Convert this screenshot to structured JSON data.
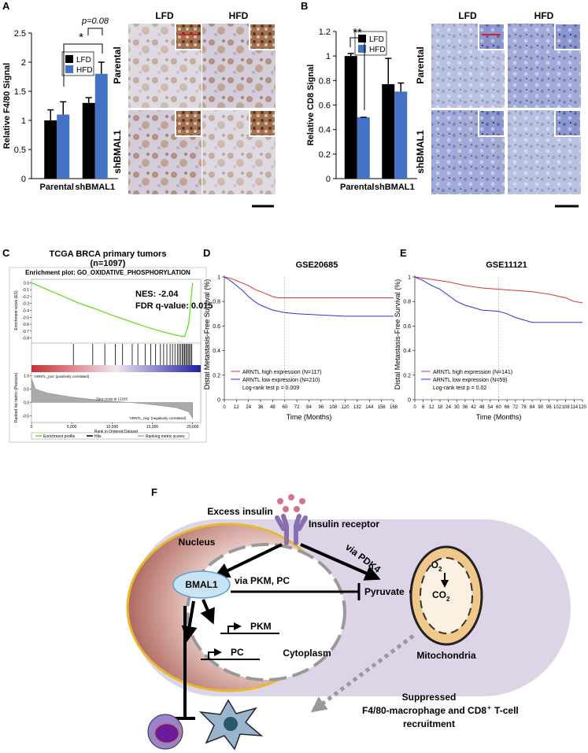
{
  "panel_labels": [
    "A",
    "B",
    "C",
    "D",
    "E",
    "F"
  ],
  "chart_data": [
    {
      "type": "bar",
      "ylabel": "Relative F4/80 Signal",
      "categories": [
        "Parental",
        "shBMAL1"
      ],
      "series": [
        {
          "name": "LFD",
          "color": "#000000",
          "values": [
            1.0,
            1.3
          ],
          "errors": [
            0.18,
            0.09
          ]
        },
        {
          "name": "HFD",
          "color": "#4472c4",
          "values": [
            1.1,
            1.8
          ],
          "errors": [
            0.22,
            0.2
          ]
        }
      ],
      "ylim": [
        0,
        2.5
      ],
      "yticks": [
        0,
        0.5,
        1,
        1.5,
        2,
        2.5
      ],
      "annotations": [
        "*",
        "p=0.08"
      ],
      "images": {
        "columns": [
          "LFD",
          "HFD"
        ],
        "rows": [
          "Parental",
          "shBMAL1"
        ]
      }
    },
    {
      "type": "bar",
      "ylabel": "Relative CD8 Signal",
      "categories": [
        "Parental",
        "shBMAL1"
      ],
      "series": [
        {
          "name": "LFD",
          "color": "#000000",
          "values": [
            1.0,
            0.77
          ],
          "errors": [
            0.02,
            0.21
          ]
        },
        {
          "name": "HFD",
          "color": "#4472c4",
          "values": [
            0.5,
            0.71
          ],
          "errors": [
            0,
            0.07
          ]
        }
      ],
      "ylim": [
        0,
        1.2
      ],
      "yticks": [
        0,
        0.2,
        0.4,
        0.6,
        0.8,
        1,
        1.2
      ],
      "annotations": [
        "**"
      ],
      "images": {
        "columns": [
          "LFD",
          "HFD"
        ],
        "rows": [
          "Parental",
          "shBMAL1"
        ]
      }
    },
    {
      "type": "gsea",
      "title": "TCGA BRCA primary tumors",
      "subtitle": "(n=1097)",
      "plot_title": "Enrichment plot: GO_OXIDATIVE_PHOSPHORYLATION",
      "stats": [
        "NES: -2.04",
        "FDR q-value: 0.015"
      ],
      "ylabel": "Enrichment score (ES)",
      "color": "#66dd22",
      "x": [
        0,
        2000,
        4000,
        6000,
        8000,
        10000,
        12000,
        14000,
        16000,
        18000,
        19000,
        19500,
        20000
      ],
      "values": [
        0,
        -0.1,
        -0.2,
        -0.3,
        -0.38,
        -0.47,
        -0.55,
        -0.63,
        -0.7,
        -0.76,
        -0.78,
        -0.6,
        0
      ],
      "ylim": [
        -0.85,
        0.05
      ],
      "yticks": [
        {
          "value": 0,
          "label": "0.0"
        },
        -0.1,
        -0.2,
        -0.3,
        -0.4,
        -0.5,
        -0.6,
        -0.7,
        -0.8
      ],
      "hits": [
        5200,
        7600,
        9100,
        10400,
        11300,
        12500,
        13200,
        14100,
        14800,
        15400,
        16000,
        16400,
        16800,
        17200,
        17500,
        17800,
        18100,
        18300,
        18500,
        18700,
        18850,
        19000,
        19150,
        19300,
        19450,
        19600,
        19750,
        19900
      ],
      "metric": {
        "ylabel": "Ranked list metric (Pearson)",
        "x": [
          0,
          500,
          2000,
          5000,
          8000,
          10000,
          12183,
          14000,
          16000,
          18000,
          19500,
          20000
        ],
        "values": [
          0.9,
          0.5,
          0.35,
          0.2,
          0.1,
          0.05,
          0,
          -0.05,
          -0.12,
          -0.2,
          -0.35,
          -0.6
        ],
        "ylim": [
          -0.75,
          1.1
        ],
        "yticks": [
          {
            "value": 1,
            "label": "1.0"
          },
          {
            "value": 0.5,
            "label": "0.5"
          },
          {
            "value": 0,
            "label": "0.0"
          },
          -0.5
        ],
        "pos_label": "'ARNTL_pos' (positively correlated)",
        "neg_label": "'ARNTL_neg' (negatively correlated)",
        "zero_cross": "Zero cross at 12183"
      },
      "xlabel": "Rank in Ordered Dataset",
      "xlim": [
        0,
        21000
      ],
      "xticks": [
        0,
        {
          "value": 5000,
          "label": "5,000"
        },
        {
          "value": 10000,
          "label": "10,000"
        },
        {
          "value": 15000,
          "label": "15,000"
        },
        {
          "value": 20000,
          "label": "20,000"
        }
      ],
      "legend": [
        "Enrichment profile",
        "Hits",
        "Ranking metric scores"
      ]
    },
    {
      "type": "km",
      "title": "GSE20685",
      "ylabel": "Distal Metastasis-Free Survival (%)",
      "xlabel": "Time (Months)",
      "xlim": [
        0,
        168
      ],
      "xticks": [
        0,
        12,
        24,
        36,
        48,
        60,
        72,
        84,
        96,
        108,
        120,
        132,
        144,
        156,
        168
      ],
      "ylim": [
        0,
        1
      ],
      "yticks": [
        0,
        0.2,
        0.4,
        0.6,
        0.8,
        1
      ],
      "ref_line": 60,
      "series": [
        {
          "name": "ARNTL high expression (N=117)",
          "color": "#e03030",
          "x": [
            0,
            6,
            12,
            18,
            24,
            30,
            36,
            42,
            48,
            54,
            60,
            168
          ],
          "values": [
            1,
            0.99,
            0.97,
            0.95,
            0.93,
            0.9,
            0.88,
            0.86,
            0.84,
            0.83,
            0.83,
            0.83
          ]
        },
        {
          "name": "ARNTL low expression (N=210)",
          "color": "#3030e0",
          "x": [
            0,
            6,
            12,
            18,
            24,
            30,
            36,
            42,
            48,
            60,
            72,
            96,
            120,
            168
          ],
          "values": [
            1,
            0.97,
            0.93,
            0.89,
            0.84,
            0.8,
            0.77,
            0.75,
            0.73,
            0.71,
            0.7,
            0.69,
            0.68,
            0.68
          ]
        }
      ],
      "note": "Log-rank test p = 0.009"
    },
    {
      "type": "km",
      "title": "GSE11121",
      "ylabel": "Distal Metastasis-Free Survival (%)",
      "xlabel": "Time (Months)",
      "xlim": [
        0,
        120
      ],
      "xticks": [
        0,
        6,
        12,
        18,
        24,
        30,
        36,
        42,
        48,
        54,
        60,
        66,
        72,
        78,
        84,
        90,
        96,
        102,
        108,
        114,
        120
      ],
      "ylim": [
        0,
        1
      ],
      "yticks": [
        0,
        0.2,
        0.4,
        0.6,
        0.8,
        1
      ],
      "ref_line": 60,
      "series": [
        {
          "name": "ARNTL high expression (N=141)",
          "color": "#e03030",
          "x": [
            0,
            12,
            24,
            36,
            48,
            60,
            72,
            84,
            96,
            108,
            114,
            120
          ],
          "values": [
            1,
            0.98,
            0.96,
            0.93,
            0.91,
            0.9,
            0.89,
            0.88,
            0.86,
            0.83,
            0.8,
            0.79
          ]
        },
        {
          "name": "ARNTL low expression (N=59)",
          "color": "#3030e0",
          "x": [
            0,
            6,
            12,
            18,
            24,
            30,
            36,
            48,
            60,
            66,
            72,
            84,
            120
          ],
          "values": [
            1,
            0.97,
            0.93,
            0.9,
            0.85,
            0.8,
            0.77,
            0.73,
            0.72,
            0.7,
            0.67,
            0.63,
            0.63
          ]
        }
      ],
      "note": "Log-rank test p = 0.02"
    }
  ],
  "diagram": {
    "excess_insulin": "Excess insulin",
    "receptor": "Insulin receptor",
    "via_pdk4": "via PDK4",
    "nucleus": "Nucleus",
    "bmal1": "BMAL1",
    "via_pkm_pc": "via PKM, PC",
    "pyruvate": "Pyruvate",
    "pkm": "PKM",
    "pc": "PC",
    "o2": [
      "O",
      "2"
    ],
    "co2": [
      "CO",
      "2"
    ],
    "mitochondria": "Mitochondria",
    "cytoplasm": "Cytoplasm",
    "outcome": [
      "Suppressed",
      "F4/80-macrophage and CD8",
      "+",
      " T-cell",
      "recruitment"
    ]
  }
}
